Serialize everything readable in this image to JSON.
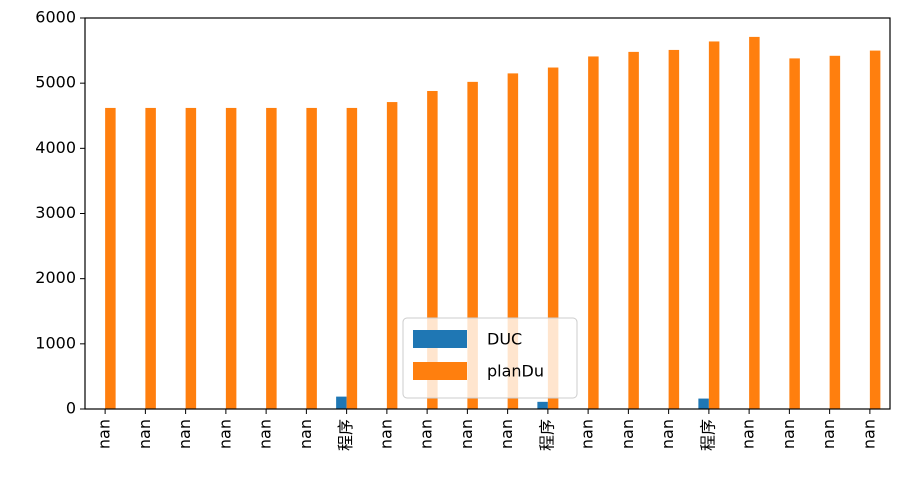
{
  "chart_data": {
    "type": "bar",
    "categories": [
      "nan",
      "nan",
      "nan",
      "nan",
      "nan",
      "nan",
      "程序",
      "nan",
      "nan",
      "nan",
      "nan",
      "程序",
      "nan",
      "nan",
      "nan",
      "程序",
      "nan",
      "nan",
      "nan",
      "nan"
    ],
    "series": [
      {
        "name": "DUC",
        "color": "#1f77b4",
        "values": [
          0,
          0,
          0,
          0,
          0,
          0,
          190,
          0,
          0,
          0,
          0,
          110,
          0,
          0,
          0,
          160,
          0,
          0,
          0,
          0
        ]
      },
      {
        "name": "planDu",
        "color": "#ff7f0e",
        "values": [
          4620,
          4620,
          4620,
          4620,
          4620,
          4620,
          4620,
          4710,
          4880,
          5020,
          5150,
          5240,
          5410,
          5480,
          5510,
          5640,
          5710,
          5380,
          5420,
          5500
        ]
      }
    ],
    "ylim": [
      0,
      6000
    ],
    "yticks": [
      0,
      1000,
      2000,
      3000,
      4000,
      5000,
      6000
    ],
    "grid": false,
    "legend": "lower center"
  }
}
